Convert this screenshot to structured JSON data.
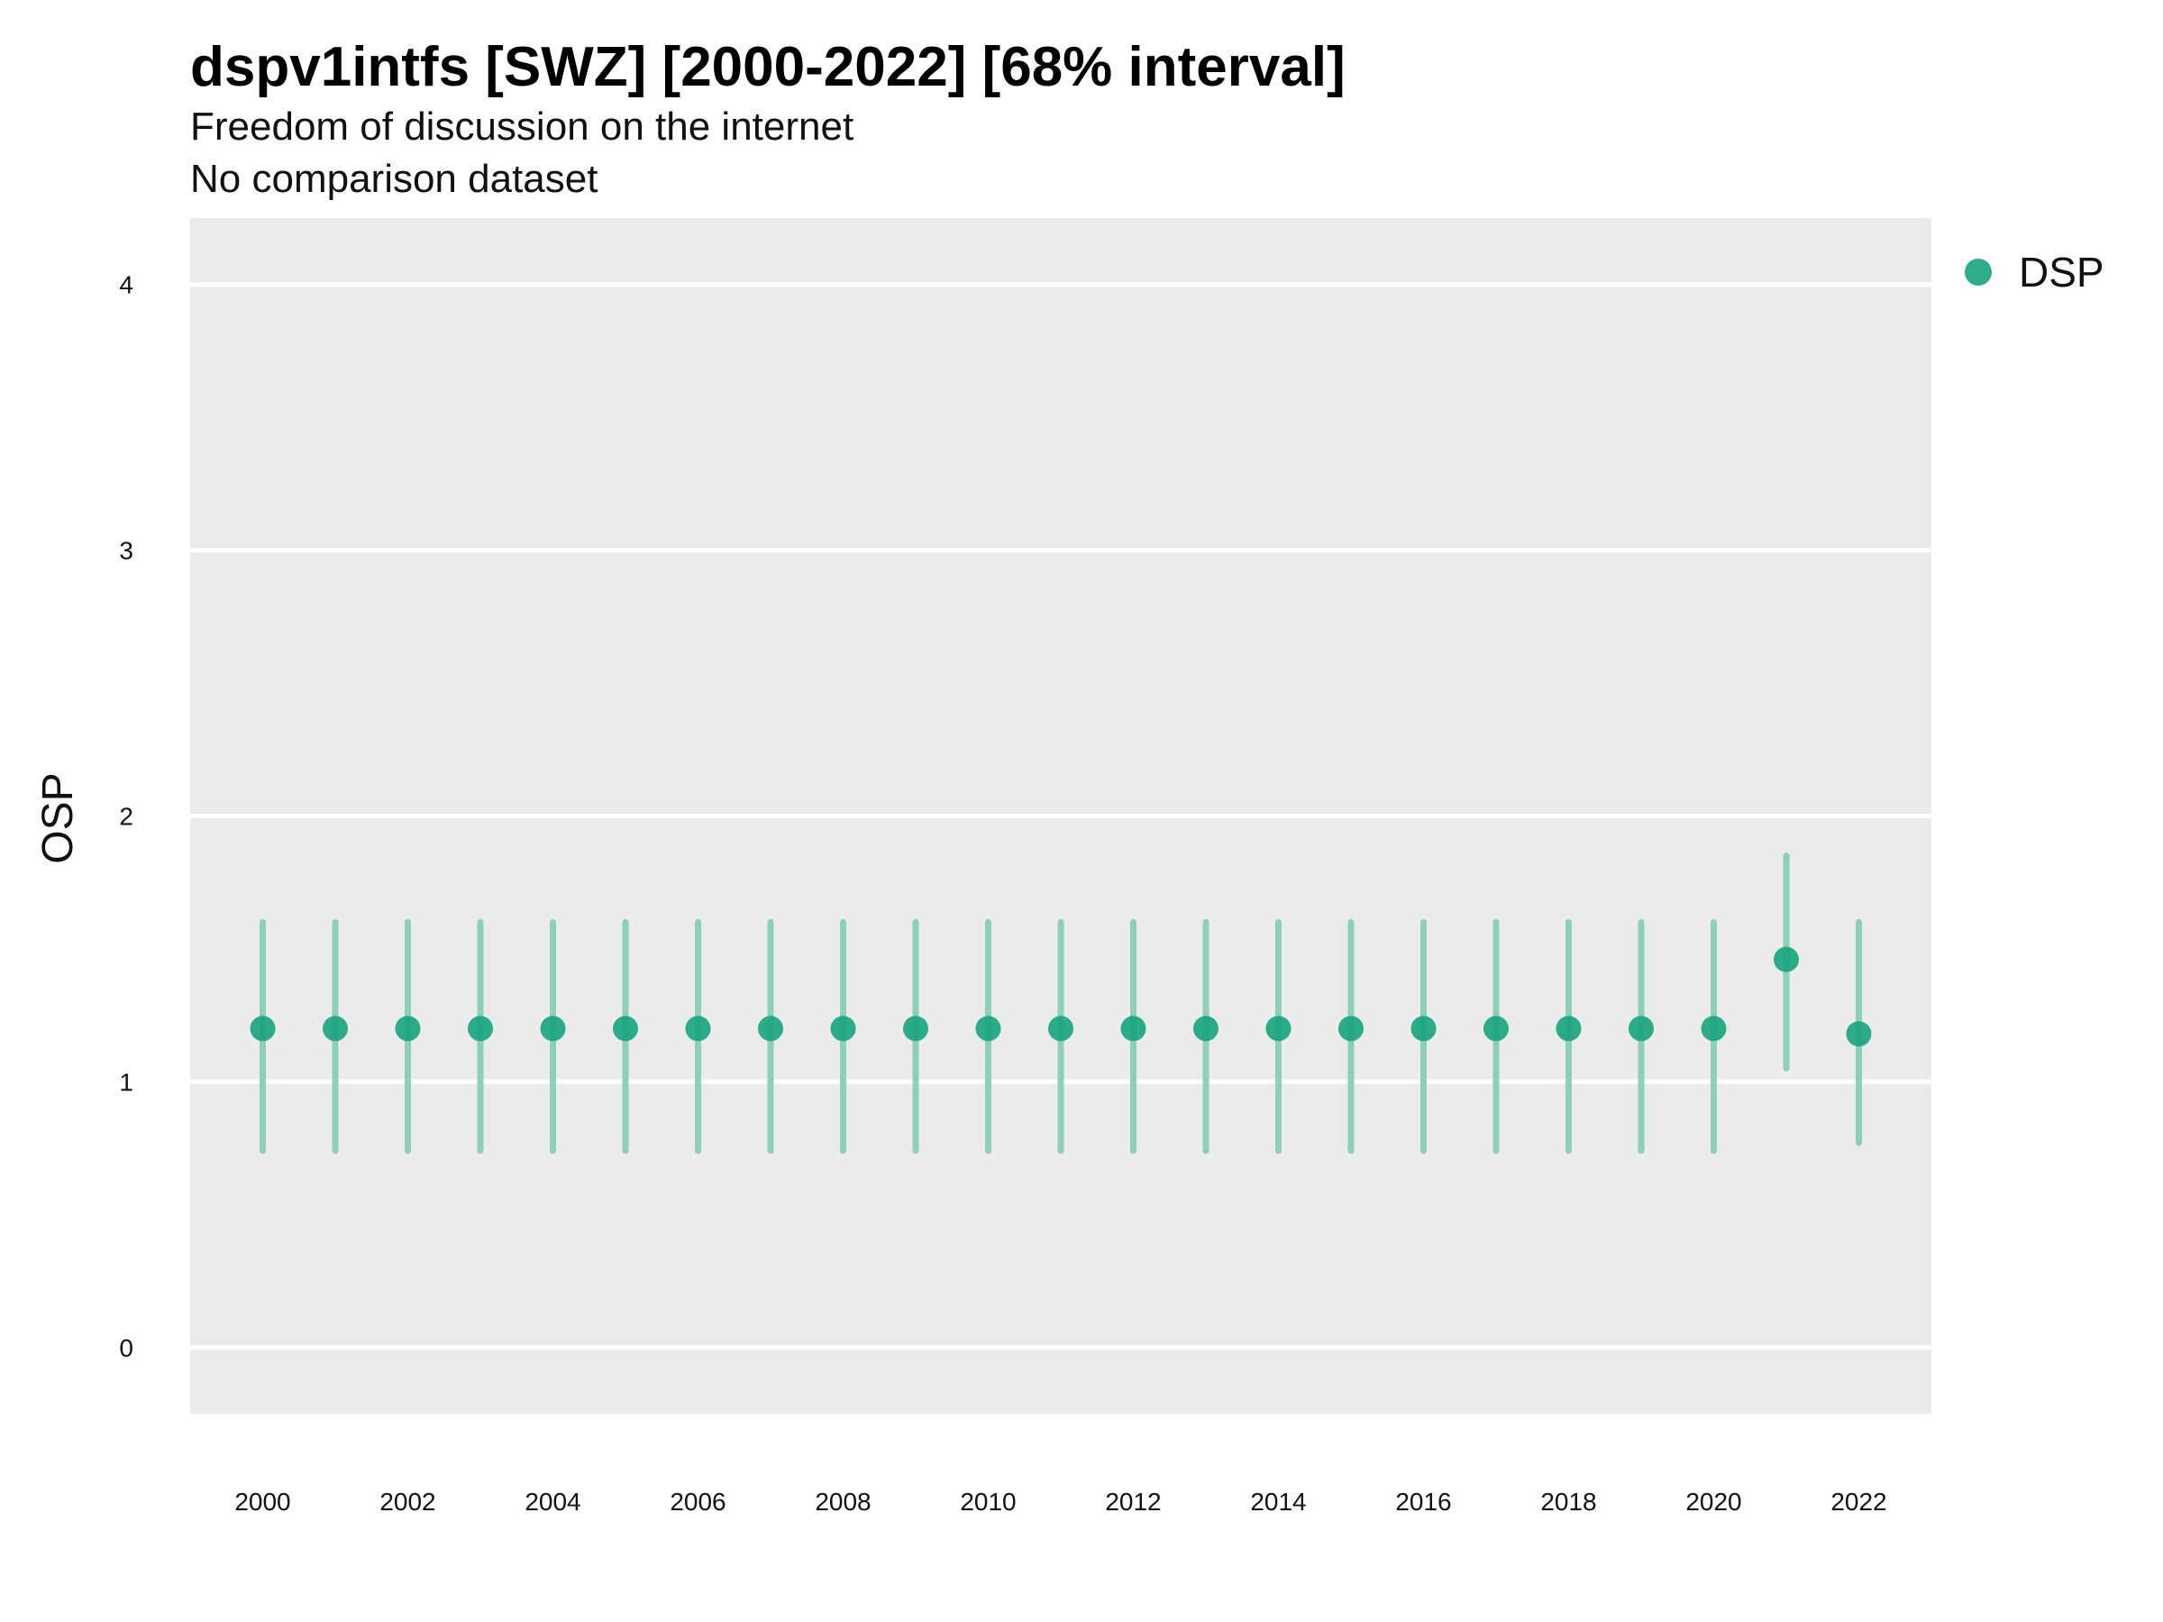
{
  "chart_data": {
    "type": "scatter",
    "title": "dspv1intfs [SWZ] [2000-2022] [68% interval]",
    "subtitle": "Freedom of discussion on the internet",
    "caption_line": "No comparison dataset",
    "xlabel": "",
    "ylabel": "OSP",
    "ylim": [
      -0.25,
      4.25
    ],
    "xlim": [
      1999,
      2023
    ],
    "y_ticks": [
      0,
      1,
      2,
      3,
      4
    ],
    "x_ticks": [
      2000,
      2002,
      2004,
      2006,
      2008,
      2010,
      2012,
      2014,
      2016,
      2018,
      2020,
      2022
    ],
    "grid": true,
    "legend_position": "top-right",
    "colors": {
      "point": "#1aa57e",
      "interval": "#8dcfb9",
      "panel": "#ebebeb",
      "grid": "#ffffff"
    },
    "series": [
      {
        "name": "DSP",
        "x": [
          2000,
          2001,
          2002,
          2003,
          2004,
          2005,
          2006,
          2007,
          2008,
          2009,
          2010,
          2011,
          2012,
          2013,
          2014,
          2015,
          2016,
          2017,
          2018,
          2019,
          2020,
          2021,
          2022
        ],
        "values": [
          1.2,
          1.2,
          1.2,
          1.2,
          1.2,
          1.2,
          1.2,
          1.2,
          1.2,
          1.2,
          1.2,
          1.2,
          1.2,
          1.2,
          1.2,
          1.2,
          1.2,
          1.2,
          1.2,
          1.2,
          1.2,
          1.46,
          1.18
        ],
        "lower": [
          0.74,
          0.74,
          0.74,
          0.74,
          0.74,
          0.74,
          0.74,
          0.74,
          0.74,
          0.74,
          0.74,
          0.74,
          0.74,
          0.74,
          0.74,
          0.74,
          0.74,
          0.74,
          0.74,
          0.74,
          0.74,
          1.05,
          0.77
        ],
        "upper": [
          1.6,
          1.6,
          1.6,
          1.6,
          1.6,
          1.6,
          1.6,
          1.6,
          1.6,
          1.6,
          1.6,
          1.6,
          1.6,
          1.6,
          1.6,
          1.6,
          1.6,
          1.6,
          1.6,
          1.6,
          1.6,
          1.85,
          1.6
        ]
      }
    ]
  }
}
